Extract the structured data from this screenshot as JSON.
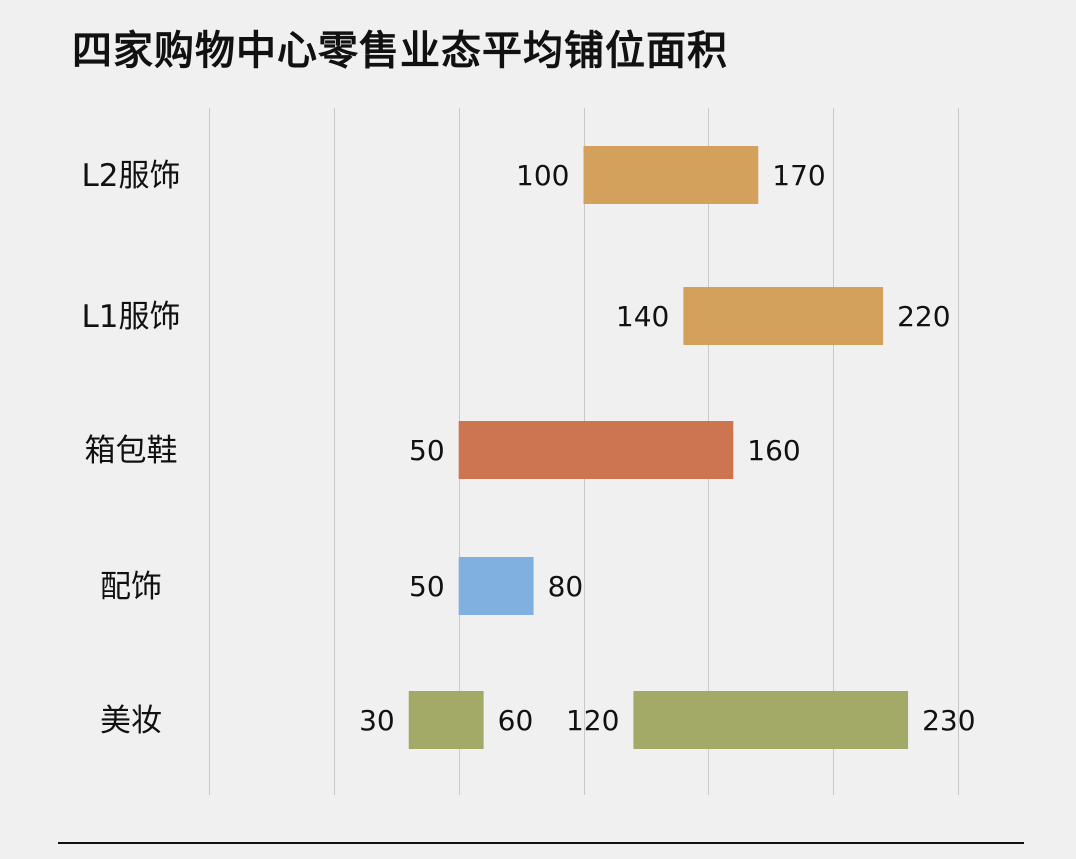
{
  "title": "四家购物中心零售业态平均铺位面积",
  "chart_data": {
    "type": "bar",
    "orientation": "horizontal-range",
    "title": "四家购物中心零售业态平均铺位面积",
    "xlabel": "",
    "ylabel": "",
    "xlim": [
      -50,
      250
    ],
    "grid": true,
    "categories": [
      "L2服饰",
      "L1服饰",
      "箱包鞋",
      "配饰",
      "美妆"
    ],
    "ranges": [
      {
        "category": "L2服饰",
        "start": 100,
        "end": 170,
        "color": "#d4a15c"
      },
      {
        "category": "L1服饰",
        "start": 140,
        "end": 220,
        "color": "#d4a15c"
      },
      {
        "category": "箱包鞋",
        "start": 50,
        "end": 160,
        "color": "#cd7450"
      },
      {
        "category": "配饰",
        "start": 50,
        "end": 80,
        "color": "#80b0df"
      },
      {
        "category": "美妆",
        "start": 30,
        "end": 60,
        "color": "#a3aa67"
      },
      {
        "category": "美妆",
        "start": 120,
        "end": 230,
        "color": "#a3aa67"
      }
    ]
  }
}
